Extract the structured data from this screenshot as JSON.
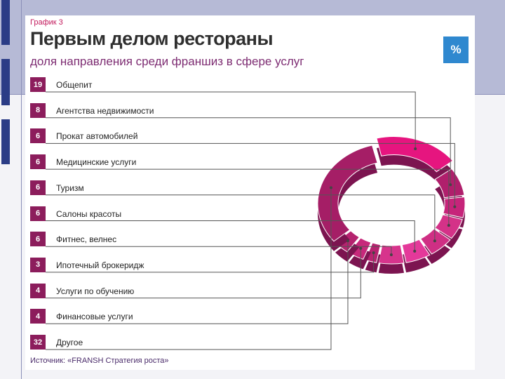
{
  "header": {
    "kicker": "График 3",
    "title": "Первым делом рестораны",
    "subtitle": "доля направления среди франшиз в сфере услуг",
    "unit": "%"
  },
  "source": "Источник: «FRANSH Стратегия роста»",
  "colors": {
    "accent": "#e6157f",
    "badge": "#8c1d5c",
    "ring": "#b0206f",
    "unit_box": "#2f88cf"
  },
  "chart_data": {
    "type": "pie",
    "title": "Первым делом рестораны",
    "subtitle": "доля направления среди франшиз в сфере услуг",
    "unit": "%",
    "categories": [
      "Общепит",
      "Агентства недвижимости",
      "Прокат автомобилей",
      "Медицинские услуги",
      "Туризм",
      "Салоны красоты",
      "Фитнес, велнес",
      "Ипотечный брокеридж",
      "Услуги по обучению",
      "Финансовые услуги",
      "Другое"
    ],
    "values": [
      19,
      8,
      6,
      6,
      6,
      6,
      6,
      3,
      4,
      4,
      32
    ],
    "value_labels": [
      "19",
      "8",
      "6",
      "6",
      "6",
      "6",
      "6",
      "3",
      "4",
      "4",
      "32"
    ]
  }
}
